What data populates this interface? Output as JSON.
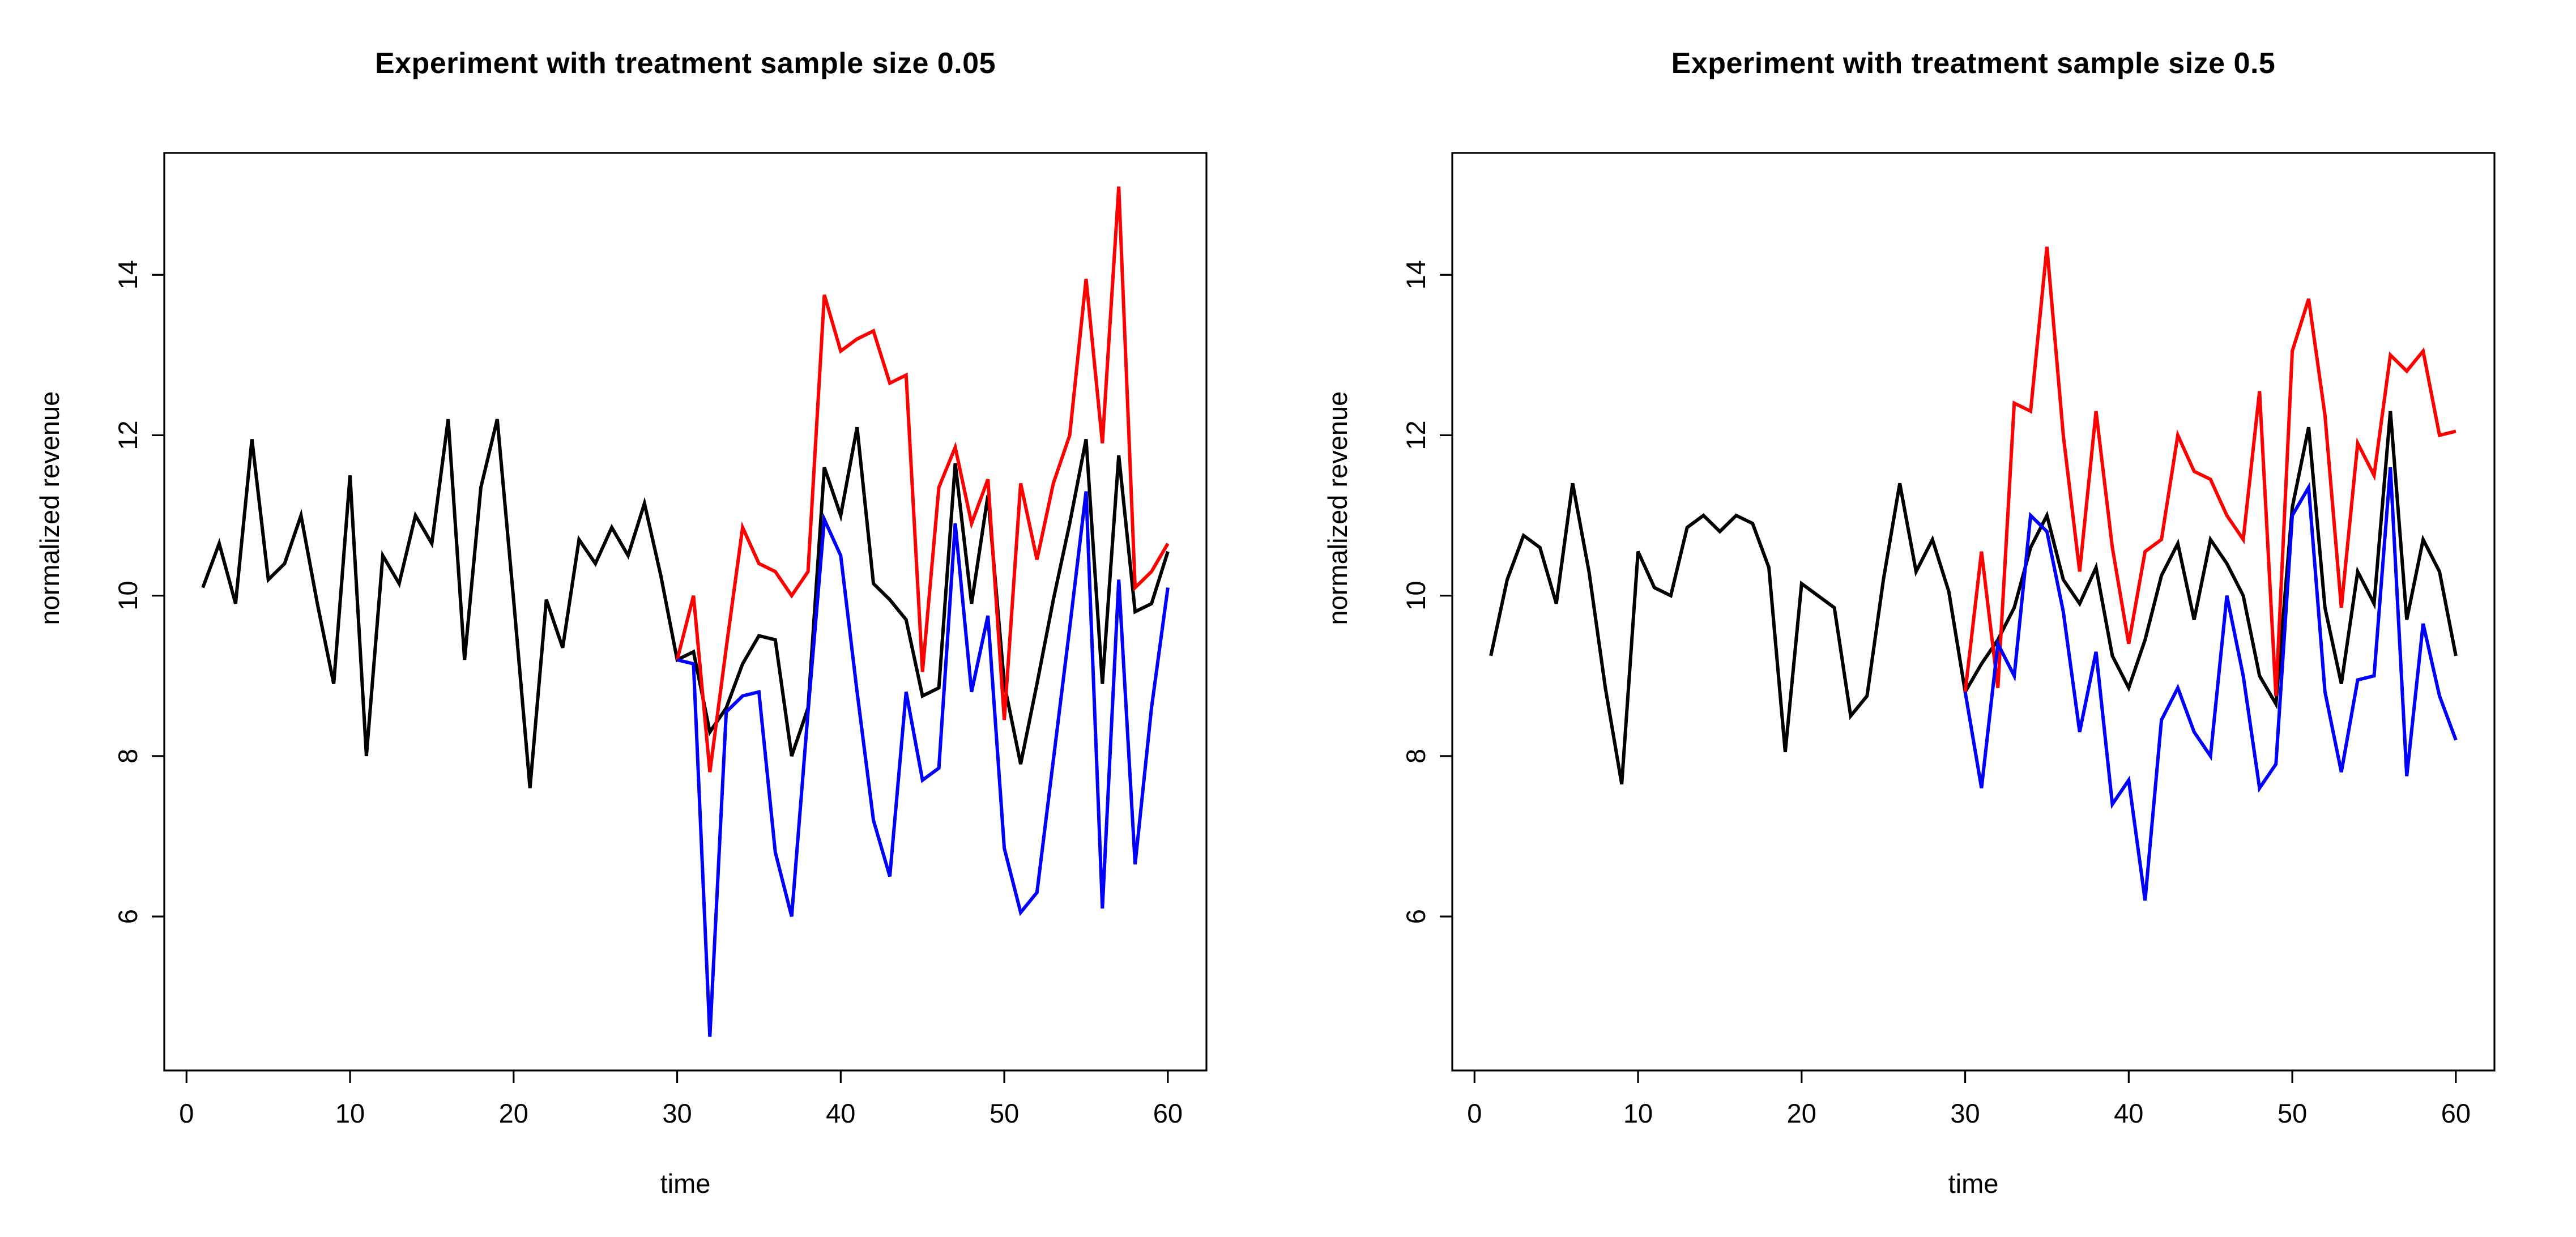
{
  "figure": {
    "background": "#ffffff",
    "panel_count": 2,
    "series_colors": {
      "control": "#000000",
      "treated": "#ff0000",
      "counterfactual": "#0000ff"
    }
  },
  "chart_data": [
    {
      "type": "line",
      "title": "Experiment with treatment sample size 0.05",
      "xlabel": "time",
      "ylabel": "normalized revenue",
      "x_ticks": [
        0,
        10,
        20,
        30,
        40,
        50,
        60
      ],
      "y_ticks": [
        6,
        8,
        10,
        12,
        14
      ],
      "xlim": [
        -1.36,
        62.36
      ],
      "ylim": [
        4.08,
        15.52
      ],
      "grid": false,
      "legend": "none",
      "series": [
        {
          "name": "black",
          "color": "#000000",
          "x_start": 1,
          "values": [
            10.1,
            10.65,
            9.9,
            11.95,
            10.2,
            10.4,
            11.0,
            9.9,
            8.9,
            11.5,
            8.0,
            10.5,
            10.15,
            11.0,
            10.65,
            12.2,
            9.2,
            11.35,
            12.2,
            9.95,
            7.6,
            9.95,
            9.35,
            10.7,
            10.4,
            10.85,
            10.5,
            11.15,
            10.25,
            9.2,
            9.3,
            8.3,
            8.6,
            9.15,
            9.5,
            9.45,
            8.0,
            8.6,
            11.6,
            11.0,
            12.1,
            10.15,
            9.95,
            9.7,
            8.75,
            8.85,
            11.65,
            9.9,
            11.25,
            8.9,
            7.9,
            8.9,
            9.95,
            10.9,
            11.95,
            8.9,
            11.75,
            9.8,
            9.9,
            10.55
          ]
        },
        {
          "name": "red",
          "color": "#ff0000",
          "x_start": 30,
          "values": [
            9.2,
            10.0,
            7.8,
            9.35,
            10.85,
            10.4,
            10.3,
            10.0,
            10.3,
            13.75,
            13.05,
            13.2,
            13.3,
            12.65,
            12.75,
            9.05,
            11.35,
            11.85,
            10.9,
            11.45,
            8.45,
            11.4,
            10.45,
            11.4,
            12.0,
            13.95,
            11.9,
            15.1,
            10.1,
            10.3,
            10.65
          ]
        },
        {
          "name": "blue",
          "color": "#0000ff",
          "x_start": 30,
          "values": [
            9.2,
            9.15,
            4.5,
            8.55,
            8.75,
            8.8,
            6.8,
            6.0,
            8.55,
            10.95,
            10.5,
            8.8,
            7.2,
            6.5,
            8.8,
            7.7,
            7.85,
            10.9,
            8.8,
            9.75,
            6.85,
            6.05,
            6.3,
            7.95,
            9.6,
            11.3,
            6.1,
            10.2,
            6.65,
            8.6,
            10.1
          ]
        }
      ]
    },
    {
      "type": "line",
      "title": "Experiment with treatment sample size 0.5",
      "xlabel": "time",
      "ylabel": "normalized revenue",
      "x_ticks": [
        0,
        10,
        20,
        30,
        40,
        50,
        60
      ],
      "y_ticks": [
        6,
        8,
        10,
        12,
        14
      ],
      "xlim": [
        -1.36,
        62.36
      ],
      "ylim": [
        4.08,
        15.52
      ],
      "grid": false,
      "legend": "none",
      "series": [
        {
          "name": "black",
          "color": "#000000",
          "x_start": 1,
          "values": [
            9.25,
            10.2,
            10.75,
            10.6,
            9.9,
            11.4,
            10.3,
            8.85,
            7.65,
            10.55,
            10.1,
            10.0,
            10.85,
            11.0,
            10.8,
            11.0,
            10.9,
            10.35,
            8.05,
            10.15,
            10.0,
            9.85,
            8.5,
            8.75,
            10.2,
            11.4,
            10.3,
            10.7,
            10.05,
            8.8,
            9.15,
            9.45,
            9.85,
            10.6,
            11.0,
            10.2,
            9.9,
            10.35,
            9.25,
            8.85,
            9.45,
            10.25,
            10.65,
            9.7,
            10.7,
            10.4,
            10.0,
            9.0,
            8.65,
            11.1,
            12.1,
            9.85,
            8.9,
            10.3,
            9.9,
            12.3,
            9.7,
            10.7,
            10.3,
            9.25
          ]
        },
        {
          "name": "red",
          "color": "#ff0000",
          "x_start": 30,
          "values": [
            8.8,
            10.55,
            8.85,
            12.4,
            12.3,
            14.35,
            12.0,
            10.3,
            12.3,
            10.6,
            9.4,
            10.55,
            10.7,
            12.0,
            11.55,
            11.45,
            11.0,
            10.7,
            12.55,
            8.75,
            13.05,
            13.7,
            12.25,
            9.85,
            11.9,
            11.5,
            13.0,
            12.8,
            13.05,
            12.0,
            12.05
          ]
        },
        {
          "name": "blue",
          "color": "#0000ff",
          "x_start": 30,
          "values": [
            8.8,
            7.6,
            9.4,
            9.0,
            11.0,
            10.8,
            9.8,
            8.3,
            9.3,
            7.4,
            7.7,
            6.2,
            8.45,
            8.85,
            8.3,
            8.0,
            10.0,
            9.0,
            7.6,
            7.9,
            11.0,
            11.35,
            8.8,
            7.8,
            8.95,
            9.0,
            11.6,
            7.75,
            9.65,
            8.75,
            8.2
          ]
        }
      ]
    }
  ]
}
